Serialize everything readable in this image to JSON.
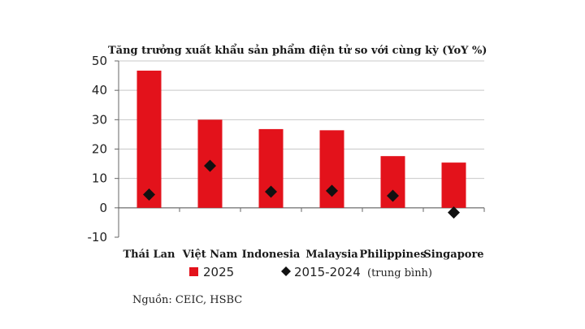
{
  "chart_data": {
    "type": "bar",
    "title": "Tăng trưởng xuất khẩu sản phẩm điện tử so với cùng kỳ (YoY %)",
    "categories": [
      "Thái Lan",
      "Việt Nam",
      "Indonesia",
      "Malaysia",
      "Philippines",
      "Singapore"
    ],
    "series": [
      {
        "name": "2025",
        "kind": "bar",
        "color": "#e3121b",
        "values": [
          46.7,
          30.0,
          26.8,
          26.4,
          17.6,
          15.4
        ]
      },
      {
        "name": "2015-2024",
        "kind": "marker",
        "color": "#111111",
        "values": [
          4.5,
          14.3,
          5.5,
          5.8,
          4.1,
          -1.6
        ]
      }
    ],
    "legend_note": "(trung bình)",
    "ylim": [
      -10,
      50
    ],
    "yticks": [
      -10,
      0,
      10,
      20,
      30,
      40,
      50
    ],
    "grid": true,
    "legend_position": "bottom",
    "source": "Nguồn: CEIC, HSBC"
  }
}
